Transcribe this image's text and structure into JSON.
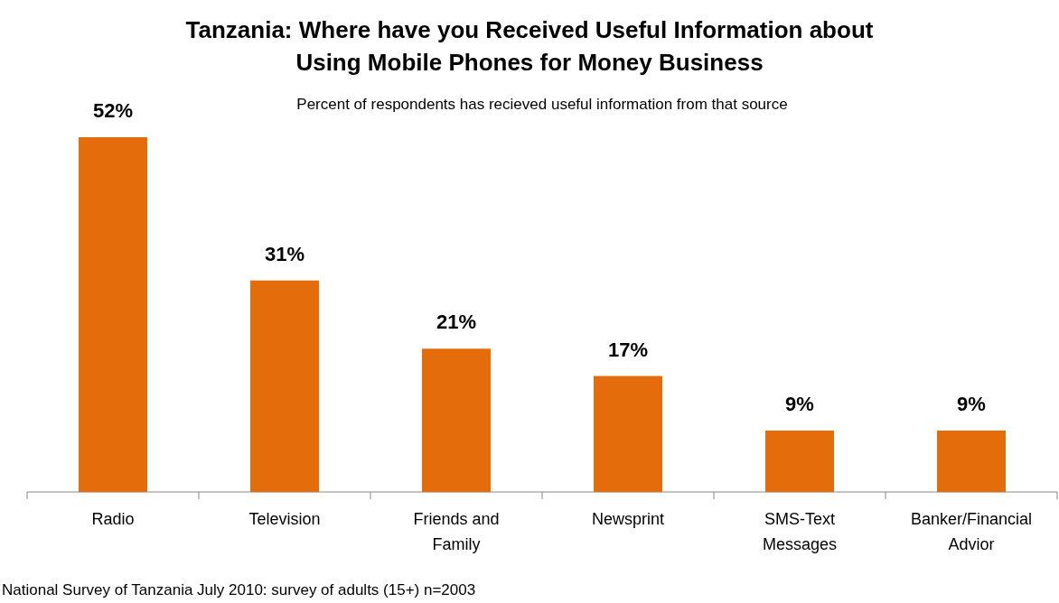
{
  "chart_data": {
    "type": "bar",
    "title": "Tanzania: Where have you Received Useful Information about Using Mobile Phones for Money Business",
    "subtitle": "Percent of respondents has recieved useful information from that source",
    "categories": [
      "Radio",
      "Television",
      "Friends and Family",
      "Newsprint",
      "SMS-Text Messages",
      "Banker/Financial Advior"
    ],
    "values": [
      52,
      31,
      21,
      17,
      9,
      9
    ],
    "color": "#e46c0a",
    "data_labels": true,
    "value_labels": [
      "52%",
      "31%",
      "21%",
      "17%",
      "9%",
      "9%"
    ],
    "annotations": [
      "National Survey of Tanzania July 2010: survey of adults (15+) n=2003"
    ]
  }
}
